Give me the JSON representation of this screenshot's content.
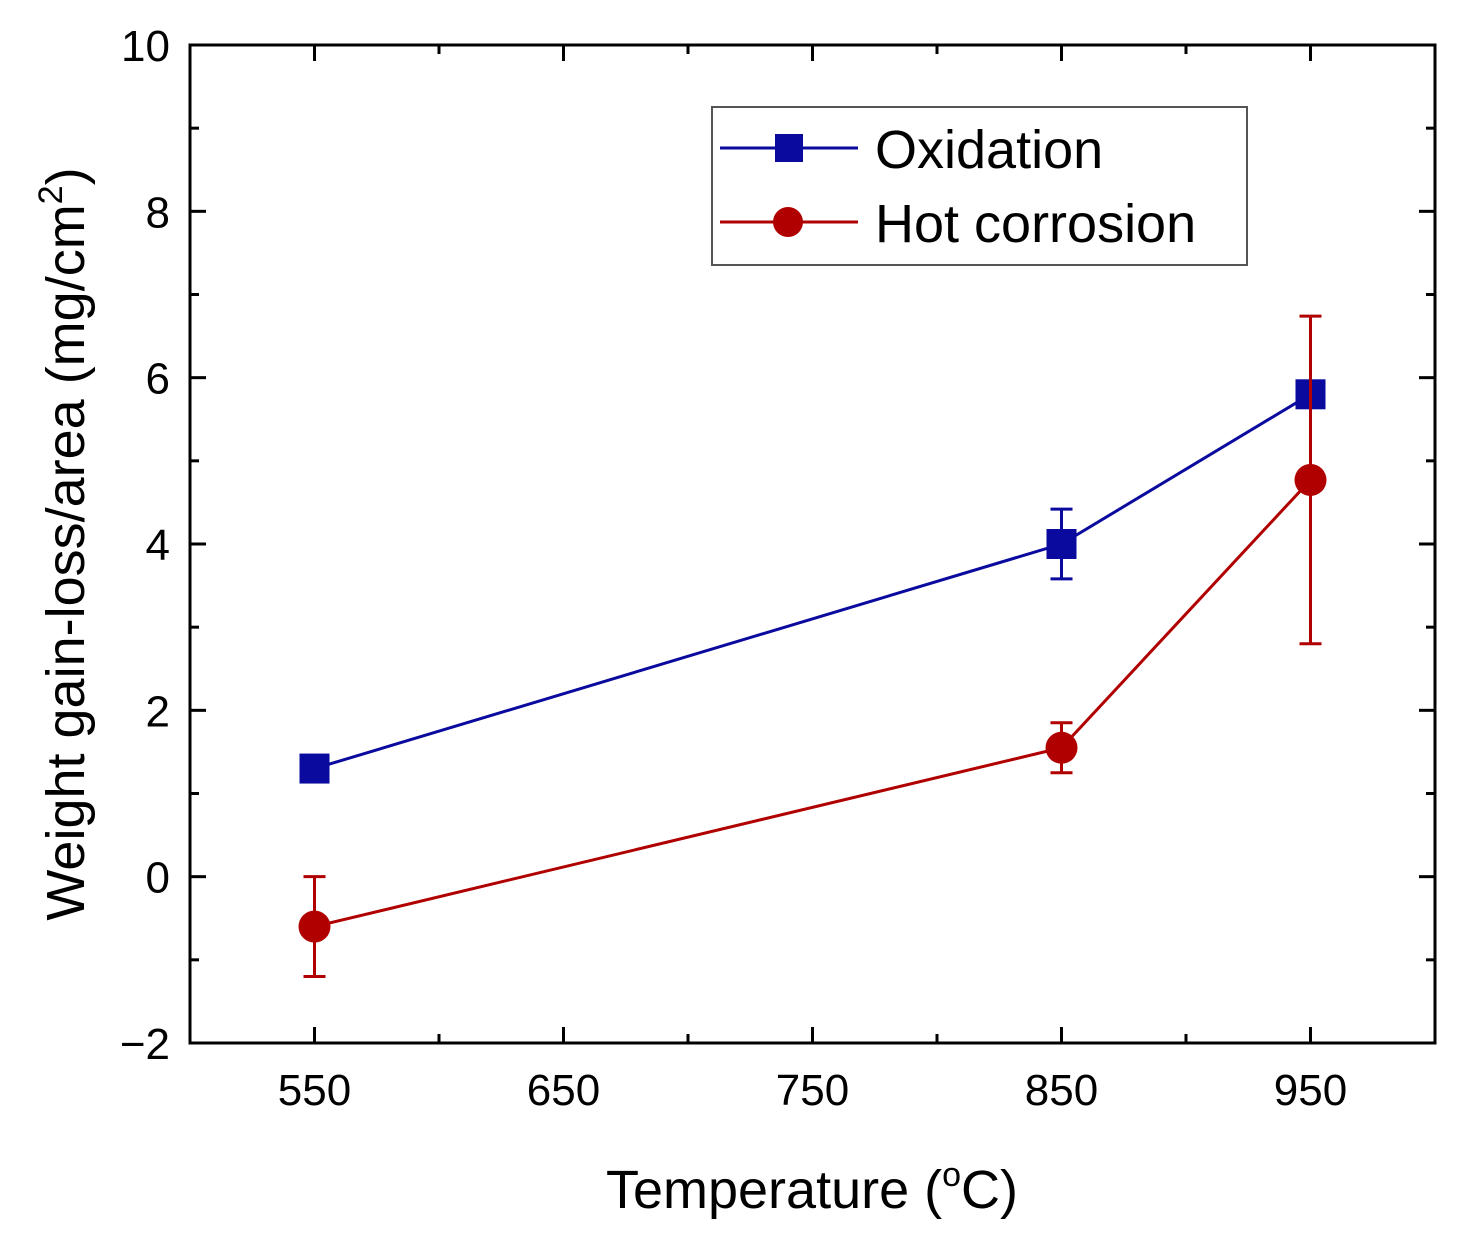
{
  "chart_data": {
    "type": "line",
    "title": "",
    "xlabel": "Temperature (",
    "xlabel_unit_sup": "o",
    "xlabel_unit_tail": "C)",
    "ylabel": "Weight gain-loss/area (mg/cm",
    "ylabel_sup": "2",
    "ylabel_tail": ")",
    "xlim": [
      500,
      1000
    ],
    "ylim": [
      -2,
      10
    ],
    "x_ticks": [
      550,
      650,
      750,
      850,
      950
    ],
    "x_tick_labels": [
      "550",
      "650",
      "750",
      "850",
      "950"
    ],
    "x_minor_ticks": [
      600,
      700,
      800,
      900
    ],
    "y_ticks": [
      -2,
      0,
      2,
      4,
      6,
      8,
      10
    ],
    "y_tick_labels": [
      "−2",
      "0",
      "2",
      "4",
      "6",
      "8",
      "10"
    ],
    "y_minor_ticks": [
      -1,
      1,
      3,
      5,
      7,
      9
    ],
    "legend_position": "top-right",
    "series": [
      {
        "name": "Oxidation",
        "color": "#0a0a9e",
        "marker": "square",
        "x": [
          550,
          850,
          950
        ],
        "values": [
          1.3,
          4.0,
          5.8
        ],
        "errors": [
          0.1,
          0.42,
          0.1
        ]
      },
      {
        "name": "Hot corrosion",
        "color": "#b00000",
        "marker": "circle",
        "x": [
          550,
          850,
          950
        ],
        "values": [
          -0.6,
          1.55,
          4.77
        ],
        "errors": [
          0.6,
          0.3,
          1.97
        ]
      }
    ]
  }
}
